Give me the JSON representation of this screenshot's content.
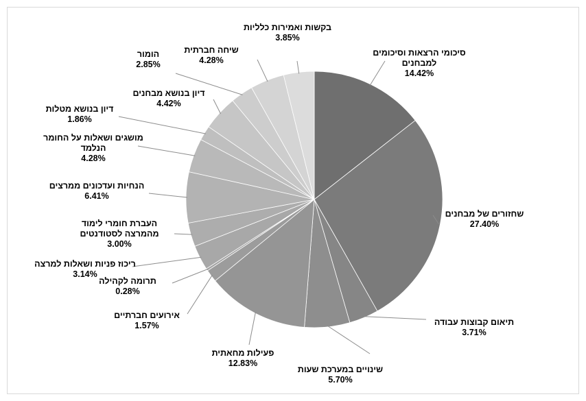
{
  "chart_data": {
    "type": "pie",
    "direction": "clockwise-from-top",
    "title": "",
    "legend": "none",
    "slices": [
      {
        "label": "סיכומי הרצאות וסיכומים למבחנים",
        "lines": [
          "סיכומי הרצאות וסיכומים",
          "למבחנים"
        ],
        "value": 14.42,
        "value_text": "14.42%",
        "color": "#6f6f6f"
      },
      {
        "label": "שחזורים של מבחנים",
        "lines": [
          "שחזורים של מבחנים"
        ],
        "value": 27.4,
        "value_text": "27.40%",
        "color": "#7b7b7b"
      },
      {
        "label": "תיאום קבוצות עבודה",
        "lines": [
          "תיאום קבוצות עבודה"
        ],
        "value": 3.71,
        "value_text": "3.71%",
        "color": "#868686"
      },
      {
        "label": "שינויים במערכת שעות",
        "lines": [
          "שינויים במערכת שעות"
        ],
        "value": 5.7,
        "value_text": "5.70%",
        "color": "#8e8e8e"
      },
      {
        "label": "פעילות מחאתית",
        "lines": [
          "פעילות מחאתית"
        ],
        "value": 12.83,
        "value_text": "12.83%",
        "color": "#959595"
      },
      {
        "label": "אירועים חברתיים",
        "lines": [
          "אירועים חברתיים"
        ],
        "value": 1.57,
        "value_text": "1.57%",
        "color": "#9c9c9c"
      },
      {
        "label": "תרומה לקהילה",
        "lines": [
          "תרומה לקהילה"
        ],
        "value": 0.28,
        "value_text": "0.28%",
        "color": "#a2a2a2"
      },
      {
        "label": "ריכוז פניות ושאלות למרצה",
        "lines": [
          "ריכוז פניות ושאלות למרצה"
        ],
        "value": 3.14,
        "value_text": "3.14%",
        "color": "#a8a8a8"
      },
      {
        "label": "העברת חומרי לימוד מהמרצה לסטודנטים",
        "lines": [
          "העברת חומרי לימוד",
          "מהמרצה לסטודנטים"
        ],
        "value": 3.0,
        "value_text": "3.00%",
        "color": "#adadad"
      },
      {
        "label": "הנחיות ועדכונים ממרצים",
        "lines": [
          "הנחיות ועדכונים ממרצים"
        ],
        "value": 6.41,
        "value_text": "6.41%",
        "color": "#b3b3b3"
      },
      {
        "label": "מושגים ושאלות על החומר הנלמד",
        "lines": [
          "מושגים ושאלות על החומר",
          "הנלמד"
        ],
        "value": 4.28,
        "value_text": "4.28%",
        "color": "#b9b9b9"
      },
      {
        "label": "דיון בנושא מטלות",
        "lines": [
          "דיון בנושא מטלות"
        ],
        "value": 1.86,
        "value_text": "1.86%",
        "color": "#bfbfbf"
      },
      {
        "label": "דיון בנושא מבחנים",
        "lines": [
          "דיון בנושא מבחנים"
        ],
        "value": 4.42,
        "value_text": "4.42%",
        "color": "#c6c6c6"
      },
      {
        "label": "הומור",
        "lines": [
          "הומור"
        ],
        "value": 2.85,
        "value_text": "2.85%",
        "color": "#cdcdcd"
      },
      {
        "label": "שיחה חברתית",
        "lines": [
          "שיחה חברתית"
        ],
        "value": 4.28,
        "value_text": "4.28%",
        "color": "#d4d4d4"
      },
      {
        "label": "בקשות ואמירות כלליות",
        "lines": [
          "בקשות ואמירות כלליות"
        ],
        "value": 3.85,
        "value_text": "3.85%",
        "color": "#dcdcdc"
      }
    ]
  }
}
